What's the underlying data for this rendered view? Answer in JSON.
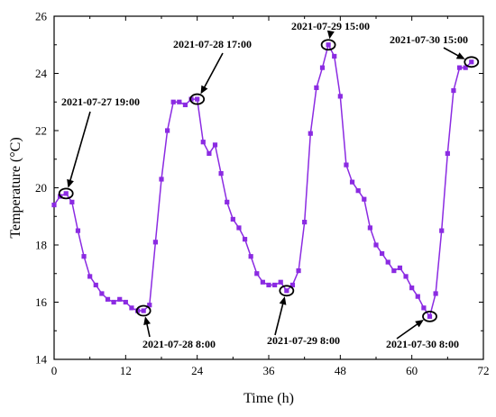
{
  "chart_data": {
    "type": "line",
    "xlabel": "Time (h)",
    "ylabel": "Temperature (°C)",
    "xlim": [
      0,
      72
    ],
    "ylim": [
      14,
      26
    ],
    "xticks": [
      0,
      12,
      24,
      36,
      48,
      60,
      72
    ],
    "yticks": [
      14,
      16,
      18,
      20,
      22,
      24,
      26
    ],
    "grid": false,
    "legend": "none",
    "series": [
      {
        "color": "#8b2be2",
        "marker": "square",
        "points": [
          [
            0,
            19.4
          ],
          [
            1,
            19.7
          ],
          [
            2,
            19.8
          ],
          [
            3,
            19.5
          ],
          [
            4,
            18.5
          ],
          [
            5,
            17.6
          ],
          [
            6,
            16.9
          ],
          [
            7,
            16.6
          ],
          [
            8,
            16.3
          ],
          [
            9,
            16.1
          ],
          [
            10,
            16.0
          ],
          [
            11,
            16.1
          ],
          [
            12,
            16.0
          ],
          [
            13,
            15.8
          ],
          [
            14,
            15.7
          ],
          [
            15,
            15.7
          ],
          [
            16,
            15.9
          ],
          [
            17,
            18.1
          ],
          [
            18,
            20.3
          ],
          [
            19,
            22.0
          ],
          [
            20,
            23.0
          ],
          [
            21,
            23.0
          ],
          [
            22,
            22.9
          ],
          [
            23,
            23.1
          ],
          [
            24,
            23.1
          ],
          [
            25,
            21.6
          ],
          [
            26,
            21.2
          ],
          [
            27,
            21.5
          ],
          [
            28,
            20.5
          ],
          [
            29,
            19.5
          ],
          [
            30,
            18.9
          ],
          [
            31,
            18.6
          ],
          [
            32,
            18.2
          ],
          [
            33,
            17.6
          ],
          [
            34,
            17.0
          ],
          [
            35,
            16.7
          ],
          [
            36,
            16.6
          ],
          [
            37,
            16.6
          ],
          [
            38,
            16.7
          ],
          [
            39,
            16.4
          ],
          [
            40,
            16.6
          ],
          [
            41,
            17.1
          ],
          [
            42,
            18.8
          ],
          [
            43,
            21.9
          ],
          [
            44,
            23.5
          ],
          [
            45,
            24.2
          ],
          [
            46,
            25.0
          ],
          [
            47,
            24.6
          ],
          [
            48,
            23.2
          ],
          [
            49,
            20.8
          ],
          [
            50,
            20.2
          ],
          [
            51,
            19.9
          ],
          [
            52,
            19.6
          ],
          [
            53,
            18.6
          ],
          [
            54,
            18.0
          ],
          [
            55,
            17.7
          ],
          [
            56,
            17.4
          ],
          [
            57,
            17.1
          ],
          [
            58,
            17.2
          ],
          [
            59,
            16.9
          ],
          [
            60,
            16.5
          ],
          [
            61,
            16.2
          ],
          [
            62,
            15.8
          ],
          [
            63,
            15.5
          ],
          [
            64,
            16.3
          ],
          [
            65,
            18.5
          ],
          [
            66,
            21.2
          ],
          [
            67,
            23.4
          ],
          [
            68,
            24.2
          ],
          [
            69,
            24.2
          ],
          [
            70,
            24.4
          ]
        ]
      }
    ],
    "annotations": [
      {
        "label": "2021-07-27 19:00",
        "x": 2,
        "y": 19.8
      },
      {
        "label": "2021-07-28 8:00",
        "x": 15,
        "y": 15.7
      },
      {
        "label": "2021-07-28 17:00",
        "x": 24,
        "y": 23.1
      },
      {
        "label": "2021-07-29 8:00",
        "x": 39,
        "y": 16.4
      },
      {
        "label": "2021-07-29 15:00",
        "x": 46,
        "y": 25.0
      },
      {
        "label": "2021-07-30 8:00",
        "x": 63,
        "y": 15.5
      },
      {
        "label": "2021-07-30 15:00",
        "x": 70,
        "y": 24.4
      }
    ]
  }
}
